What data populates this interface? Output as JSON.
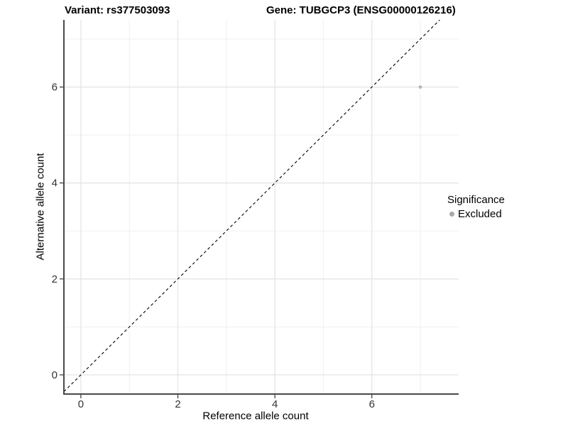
{
  "chart_data": {
    "type": "scatter",
    "title_left": "Variant: rs377503093",
    "title_right": "Gene: TUBGCP3 (ENSG00000126216)",
    "xlabel": "Reference allele count",
    "ylabel": "Alternative allele count",
    "xlim": [
      -0.35,
      7.79
    ],
    "ylim": [
      -0.4,
      7.4
    ],
    "x_major_ticks": [
      0,
      2,
      4,
      6
    ],
    "y_major_ticks": [
      0,
      2,
      4,
      6
    ],
    "x_minor_ticks": [
      1,
      3,
      5,
      7
    ],
    "y_minor_ticks": [
      1,
      3,
      5,
      7
    ],
    "grid": "major and minor gridlines, white panel",
    "reference_line": {
      "kind": "identity y=x",
      "dashed": true,
      "color": "#000000"
    },
    "series": [
      {
        "name": "Excluded",
        "marker": "circle",
        "color": "#b4b4b4",
        "points": [
          {
            "x": 7,
            "y": 6
          }
        ]
      }
    ],
    "legend": {
      "title": "Significance",
      "position": "right",
      "items": [
        {
          "label": "Excluded",
          "color": "#a9a9a9"
        }
      ]
    }
  },
  "theme": {
    "background": "#ffffff",
    "grid_major_color": "#e3e3e3",
    "grid_minor_color": "#f0f0f0",
    "axis_line_color": "#4a4a4a",
    "tick_mark_color": "#333333",
    "tick_label_color": "#333333",
    "point_color": "#b4b4b4"
  }
}
